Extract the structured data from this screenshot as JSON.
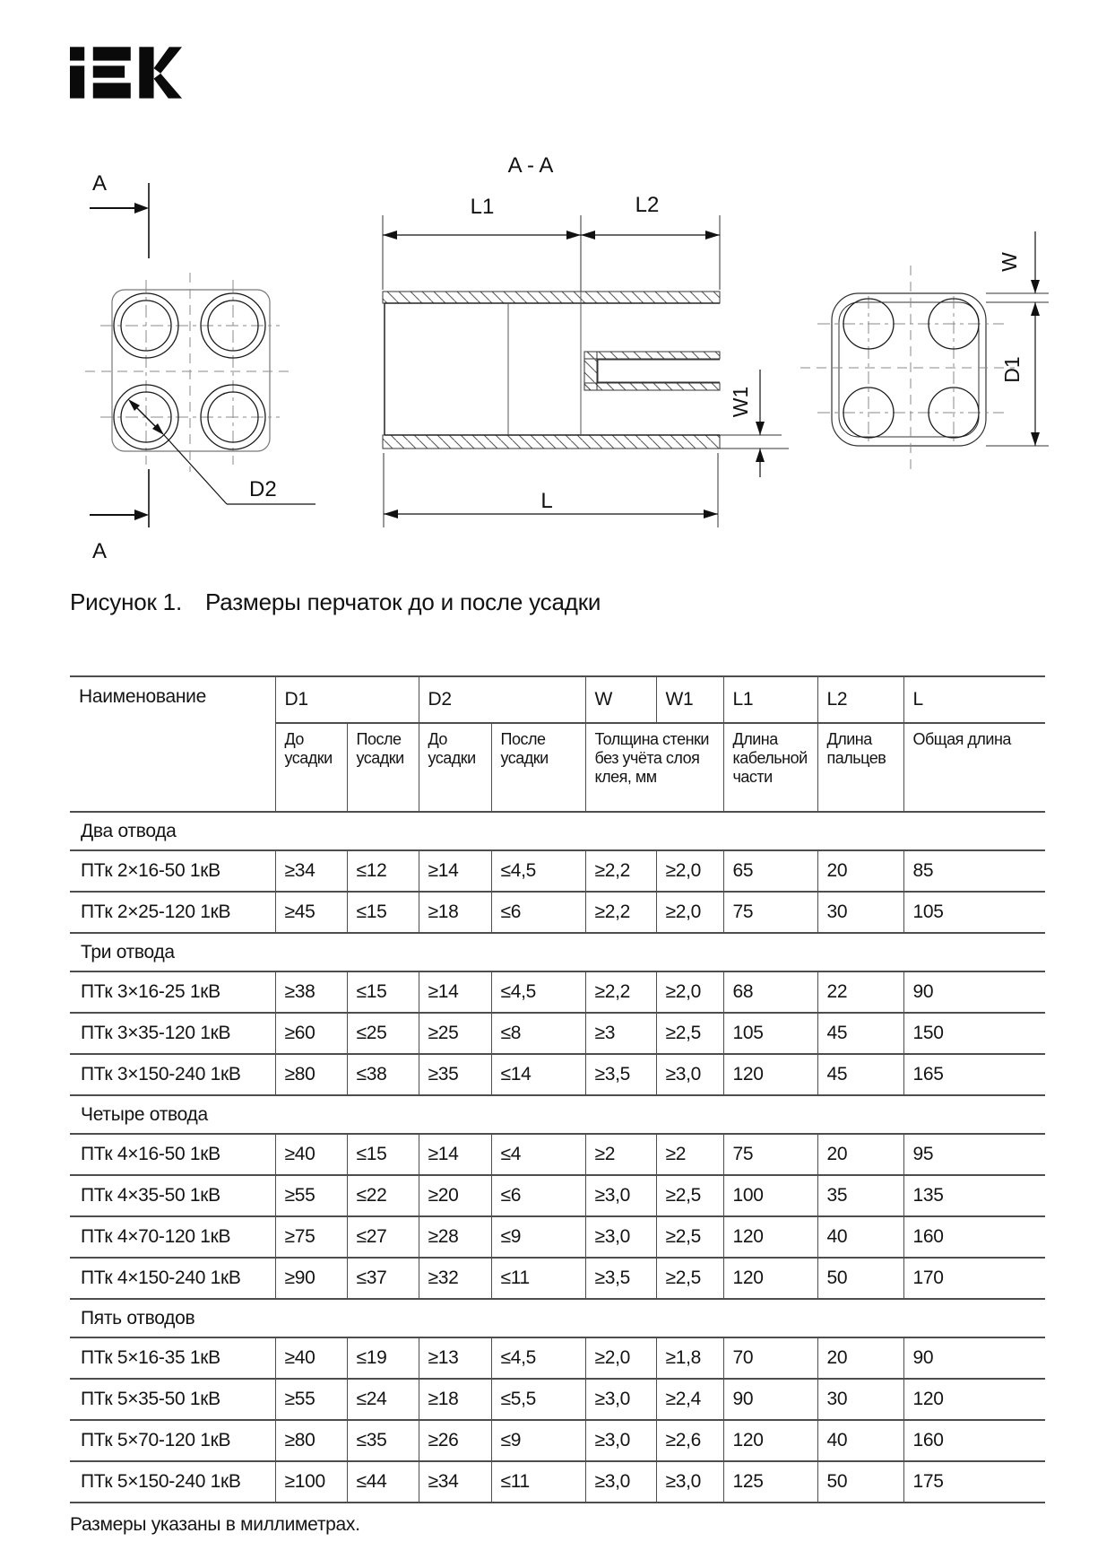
{
  "logo": {
    "text": "iEK",
    "color": "#0a0a0a"
  },
  "figure": {
    "section_arrow_top": "A",
    "section_arrow_bottom": "A",
    "section_view_title": "A - A",
    "labels": {
      "l1": "L1",
      "l2": "L2",
      "l": "L",
      "w": "W",
      "w1": "W1",
      "d1": "D1",
      "d2": "D2"
    },
    "caption_prefix": "Рисунок 1.",
    "caption_text": "Размеры перчаток до и после усадки"
  },
  "table": {
    "header": {
      "name": "Наименование",
      "d1": "D1",
      "d2": "D2",
      "w": "W",
      "w1": "W1",
      "l1": "L1",
      "l2": "L2",
      "l": "L",
      "before_shrink": "До усадки",
      "after_shrink": "После усадки",
      "wall_thickness": "Толщина стенки без учёта слоя клея, мм",
      "cable_length": "Длина кабельной части",
      "fingers_length": "Длина пальцев",
      "total_length": "Общая длина"
    },
    "groups": [
      {
        "label": "Два отвода",
        "rows": [
          {
            "name": "ПТк 2×16-50 1кВ",
            "values": [
              "≥34",
              "≤12",
              "≥14",
              "≤4,5",
              "≥2,2",
              "≥2,0",
              "65",
              "20",
              "85"
            ]
          },
          {
            "name": "ПТк 2×25-120 1кВ",
            "values": [
              "≥45",
              "≤15",
              "≥18",
              "≤6",
              "≥2,2",
              "≥2,0",
              "75",
              "30",
              "105"
            ]
          }
        ]
      },
      {
        "label": "Три отвода",
        "rows": [
          {
            "name": "ПТк 3×16-25 1кВ",
            "values": [
              "≥38",
              "≤15",
              "≥14",
              "≤4,5",
              "≥2,2",
              "≥2,0",
              "68",
              "22",
              "90"
            ]
          },
          {
            "name": "ПТк 3×35-120 1кВ",
            "values": [
              "≥60",
              "≤25",
              "≥25",
              "≤8",
              "≥3",
              "≥2,5",
              "105",
              "45",
              "150"
            ]
          },
          {
            "name": "ПТк 3×150-240 1кВ",
            "values": [
              "≥80",
              "≤38",
              "≥35",
              "≤14",
              "≥3,5",
              "≥3,0",
              "120",
              "45",
              "165"
            ]
          }
        ]
      },
      {
        "label": "Четыре отвода",
        "rows": [
          {
            "name": "ПТк 4×16-50 1кВ",
            "values": [
              "≥40",
              "≤15",
              "≥14",
              "≤4",
              "≥2",
              "≥2",
              "75",
              "20",
              "95"
            ]
          },
          {
            "name": "ПТк 4×35-50 1кВ",
            "values": [
              "≥55",
              "≤22",
              "≥20",
              "≤6",
              "≥3,0",
              "≥2,5",
              "100",
              "35",
              "135"
            ]
          },
          {
            "name": "ПТк 4×70-120 1кВ",
            "values": [
              "≥75",
              "≤27",
              "≥28",
              "≤9",
              "≥3,0",
              "≥2,5",
              "120",
              "40",
              "160"
            ]
          },
          {
            "name": "ПТк 4×150-240 1кВ",
            "values": [
              "≥90",
              "≤37",
              "≥32",
              "≤11",
              "≥3,5",
              "≥2,5",
              "120",
              "50",
              "170"
            ]
          }
        ]
      },
      {
        "label": "Пять отводов",
        "rows": [
          {
            "name": "ПТк 5×16-35 1кВ",
            "values": [
              "≥40",
              "≤19",
              "≥13",
              "≤4,5",
              "≥2,0",
              "≥1,8",
              "70",
              "20",
              "90"
            ]
          },
          {
            "name": "ПТк 5×35-50 1кВ",
            "values": [
              "≥55",
              "≤24",
              "≥18",
              "≤5,5",
              "≥3,0",
              "≥2,4",
              "90",
              "30",
              "120"
            ]
          },
          {
            "name": "ПТк 5×70-120 1кВ",
            "values": [
              "≥80",
              "≤35",
              "≥26",
              "≤9",
              "≥3,0",
              "≥2,6",
              "120",
              "40",
              "160"
            ]
          },
          {
            "name": "ПТк 5×150-240 1кВ",
            "values": [
              "≥100",
              "≤44",
              "≥34",
              "≤11",
              "≥3,0",
              "≥3,0",
              "125",
              "50",
              "175"
            ]
          }
        ]
      }
    ],
    "footnote": "Размеры указаны в миллиметрах."
  },
  "colors": {
    "ink": "#141414",
    "table_line": "#4d4d4d",
    "drawing_line": "#2a2a2a",
    "centerline": "#8a8a8a"
  }
}
